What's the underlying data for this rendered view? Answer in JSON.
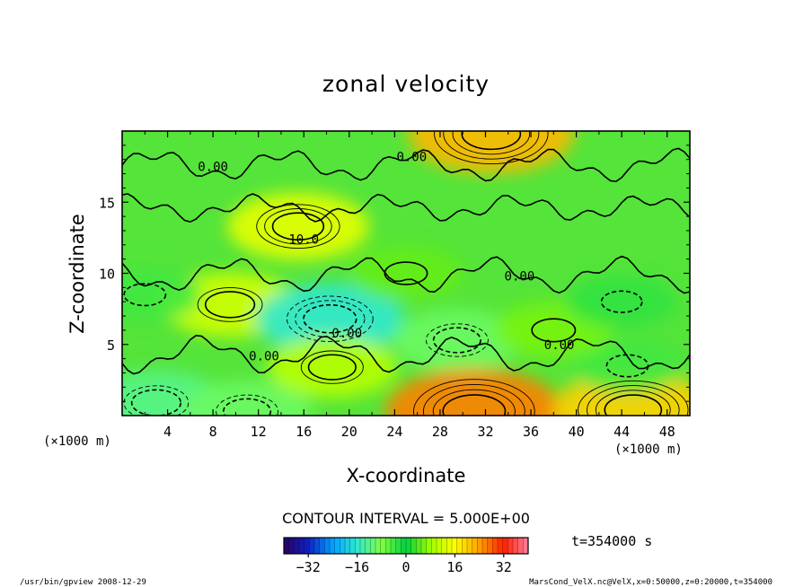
{
  "chart_data": {
    "type": "heatmap",
    "title": "zonal velocity",
    "xlabel": "X-coordinate",
    "ylabel": "Z-coordinate",
    "x_unit_label": "(×1000 m)",
    "y_unit_label": "(×1000 m)",
    "xlim": [
      0,
      50
    ],
    "ylim": [
      0,
      20
    ],
    "x_ticks": [
      4,
      8,
      12,
      16,
      20,
      24,
      28,
      32,
      36,
      40,
      44,
      48
    ],
    "y_ticks": [
      5,
      10,
      15
    ],
    "contour_interval_label": "CONTOUR INTERVAL = 5.000E+00",
    "time_label": "t=354000 s",
    "colorbar": {
      "range": [
        -40,
        40
      ],
      "ticks": [
        -32,
        -16,
        0,
        16,
        32
      ],
      "colors": [
        "#2a0066",
        "#1020c0",
        "#00a0ff",
        "#30e8d0",
        "#80ff40",
        "#00d040",
        "#a0ff00",
        "#ffff00",
        "#ffa000",
        "#ff2000",
        "#ff80a0"
      ]
    },
    "contour_labels": [
      {
        "text": "0.00",
        "x": 8,
        "z": 17.5
      },
      {
        "text": "0.00",
        "x": 25.5,
        "z": 18.2
      },
      {
        "text": "10.0",
        "x": 16.0,
        "z": 12.4
      },
      {
        "text": "0.00",
        "x": 35.0,
        "z": 9.8
      },
      {
        "text": "0.00",
        "x": 19.8,
        "z": 5.8
      },
      {
        "text": "0.00",
        "x": 12.5,
        "z": 4.2
      },
      {
        "text": "0.00",
        "x": 38.5,
        "z": 5.0
      }
    ],
    "field_features": [
      {
        "x": 9.5,
        "z": 7.8,
        "value": 12
      },
      {
        "x": 15.5,
        "z": 13.3,
        "value": 14
      },
      {
        "x": 18.3,
        "z": 6.8,
        "value": -16
      },
      {
        "x": 29.5,
        "z": 5.3,
        "value": -10
      },
      {
        "x": 32.5,
        "z": 19.8,
        "value": 22
      },
      {
        "x": 31.0,
        "z": 0.3,
        "value": 26
      },
      {
        "x": 45.0,
        "z": 0.4,
        "value": 20
      },
      {
        "x": 3.0,
        "z": 0.9,
        "value": -12
      },
      {
        "x": 11.0,
        "z": 0.3,
        "value": -10
      },
      {
        "x": 18.5,
        "z": 3.4,
        "value": 10
      },
      {
        "x": 44.5,
        "z": 3.5,
        "value": -4
      },
      {
        "x": 2.0,
        "z": 8.5,
        "value": -4
      },
      {
        "x": 38.0,
        "z": 6.0,
        "value": 6
      },
      {
        "x": 44.0,
        "z": 8.0,
        "value": -3
      },
      {
        "x": 25.0,
        "z": 10.0,
        "value": 5
      }
    ]
  },
  "footer": {
    "left": "/usr/bin/gpview  2008-12-29",
    "right": "MarsCond_VelX.nc@VelX,x=0:50000,z=0:20000,t=354000"
  }
}
